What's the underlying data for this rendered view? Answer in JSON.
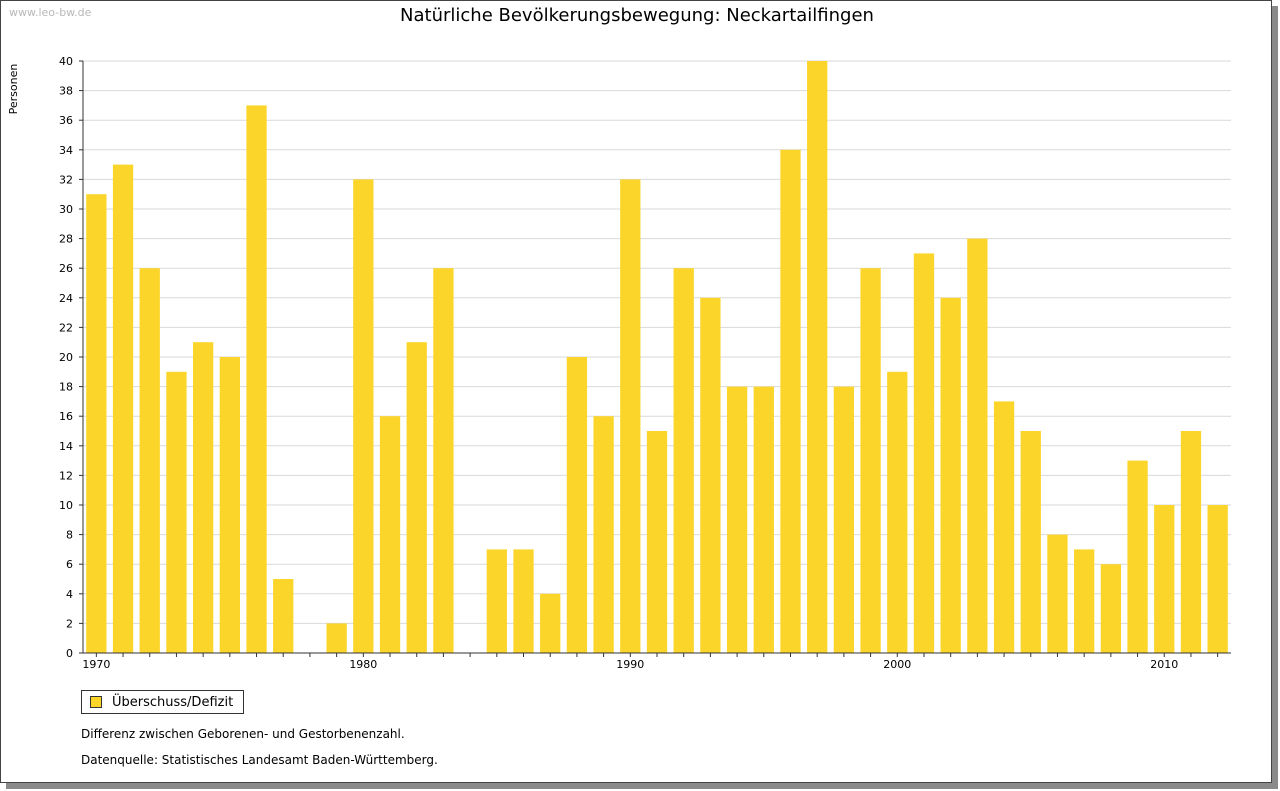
{
  "watermark": "www.leo-bw.de",
  "chart_data": {
    "type": "bar",
    "title": "Natürliche Bevölkerungsbewegung: Neckartailfingen",
    "ylabel": "Personen",
    "xlabel": "",
    "ylim": [
      0,
      40
    ],
    "y_ticks": [
      "0",
      "2",
      "4",
      "6",
      "8",
      "10",
      "12",
      "14",
      "16",
      "18",
      "20",
      "22",
      "24",
      "26",
      "28",
      "30",
      "32",
      "34",
      "36",
      "38",
      "40"
    ],
    "x_ticks": [
      {
        "label": "1970",
        "index": 0
      },
      {
        "label": "1980",
        "index": 10
      },
      {
        "label": "1990",
        "index": 20
      },
      {
        "label": "2000",
        "index": 30
      },
      {
        "label": "2010",
        "index": 40
      }
    ],
    "grid": true,
    "legend_position": "bottom-left",
    "categories": [
      1970,
      1971,
      1972,
      1973,
      1974,
      1975,
      1976,
      1977,
      1978,
      1979,
      1980,
      1981,
      1982,
      1983,
      1984,
      1985,
      1986,
      1987,
      1988,
      1989,
      1990,
      1991,
      1992,
      1993,
      1994,
      1995,
      1996,
      1997,
      1998,
      1999,
      2000,
      2001,
      2002,
      2003,
      2004,
      2005,
      2006,
      2007,
      2008,
      2009,
      2010,
      2011,
      2012
    ],
    "series": [
      {
        "name": "Überschuss/Defizit",
        "color": "#fcd52a",
        "values": [
          31,
          33,
          26,
          19,
          21,
          20,
          37,
          5,
          0,
          2,
          32,
          16,
          21,
          26,
          0,
          7,
          7,
          4,
          20,
          16,
          32,
          15,
          26,
          24,
          18,
          18,
          34,
          40,
          18,
          26,
          19,
          27,
          24,
          28,
          17,
          15,
          8,
          7,
          6,
          13,
          10,
          15,
          10
        ]
      }
    ]
  },
  "legend": {
    "label": "Überschuss/Defizit"
  },
  "notes": {
    "difference": "Differenz zwischen Geborenen- und Gestorbenenzahl.",
    "source": "Datenquelle: Statistisches Landesamt Baden-Württemberg."
  }
}
